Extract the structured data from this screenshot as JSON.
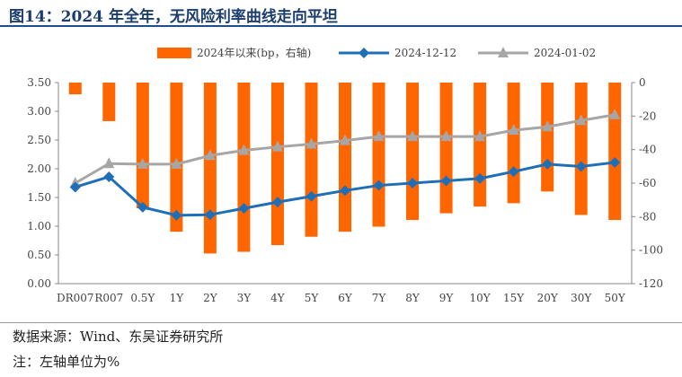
{
  "figure_title": "图14：2024 年全年，无风险利率曲线走向平坦",
  "source_text": "数据来源：Wind、东吴证券研究所",
  "note_text": "注：左轴单位为%",
  "colors": {
    "bar": "#ff6600",
    "line_dec": "#1f6fb8",
    "line_jan": "#a6a6a6",
    "title": "#1a3d6e"
  },
  "chart_data": {
    "type": "bar+line",
    "categories": [
      "DR007",
      "R007",
      "0.5Y",
      "1Y",
      "2Y",
      "3Y",
      "4Y",
      "5Y",
      "6Y",
      "7Y",
      "8Y",
      "9Y",
      "10Y",
      "15Y",
      "20Y",
      "30Y",
      "50Y"
    ],
    "y_left": {
      "min": 0,
      "max": 3.5,
      "ticks": [
        "0.00",
        "0.50",
        "1.00",
        "1.50",
        "2.00",
        "2.50",
        "3.00",
        "3.50"
      ]
    },
    "y_right": {
      "min": -120,
      "max": 0,
      "ticks": [
        "0",
        "-20",
        "-40",
        "-60",
        "-80",
        "-100",
        "-120"
      ]
    },
    "legend_position": "top",
    "series": [
      {
        "name": "2024年以来(bp，右轴)",
        "kind": "bar",
        "axis": "right",
        "values": [
          -7,
          -23,
          -75,
          -89,
          -102,
          -101,
          -97,
          -92,
          -89,
          -86,
          -82,
          -78,
          -74,
          -72,
          -65,
          -79,
          -82
        ]
      },
      {
        "name": "2024-12-12",
        "kind": "line",
        "axis": "left",
        "marker": "diamond",
        "values": [
          1.68,
          1.86,
          1.33,
          1.19,
          1.2,
          1.31,
          1.42,
          1.52,
          1.62,
          1.71,
          1.75,
          1.79,
          1.83,
          1.95,
          2.08,
          2.04,
          2.11
        ]
      },
      {
        "name": "2024-01-02",
        "kind": "line",
        "axis": "left",
        "marker": "triangle",
        "values": [
          1.75,
          2.09,
          2.08,
          2.08,
          2.23,
          2.32,
          2.38,
          2.43,
          2.49,
          2.56,
          2.56,
          2.56,
          2.56,
          2.67,
          2.73,
          2.84,
          2.94
        ]
      }
    ]
  }
}
